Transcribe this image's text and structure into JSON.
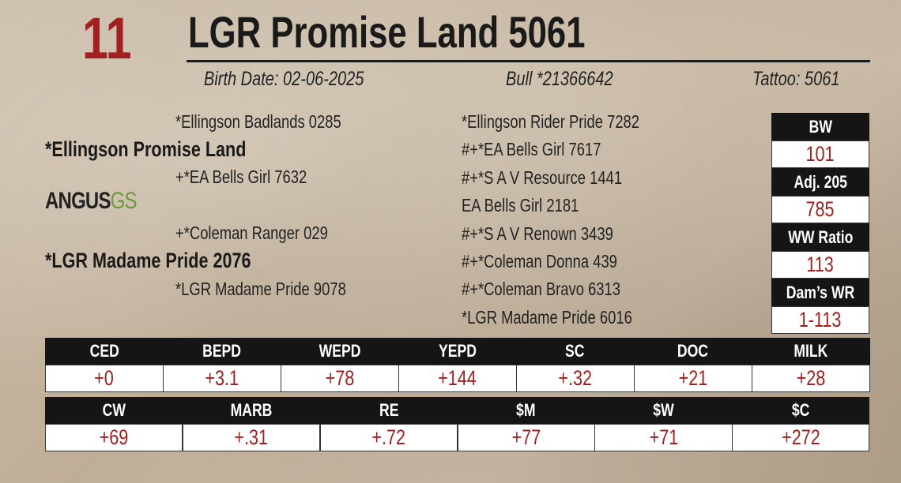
{
  "lot": "11",
  "name": "LGR Promise Land 5061",
  "birth_date": "Birth Date: 02-06-2025",
  "registration": "Bull *21366642",
  "tattoo": "Tattoo: 5061",
  "pedigree": {
    "sire_sire": "*Ellingson Badlands 0285",
    "sire": "*Ellingson Promise Land",
    "sire_dam": "+*EA Bells Girl 7632",
    "dam_sire": "+*Coleman Ranger 029",
    "dam": "*LGR Madame Pride 2076",
    "dam_dam": "*LGR Madame Pride 9078",
    "outer": [
      "*Ellingson Rider Pride 7282",
      "#+*EA Bells Girl 7617",
      "#+*S A V Resource 1441",
      "EA Bells Girl 2181",
      "#+*S A V Renown 3439",
      "#+*Coleman Donna 439",
      "#+*Coleman Bravo 6313",
      "*LGR Madame Pride 6016"
    ]
  },
  "logo": {
    "text": "ANGUS",
    "suffix": "GS"
  },
  "stats": [
    {
      "label": "BW",
      "value": "101"
    },
    {
      "label": "Adj. 205",
      "value": "785"
    },
    {
      "label": "WW Ratio",
      "value": "113"
    },
    {
      "label": "Dam’s WR",
      "value": "1-113"
    }
  ],
  "epd_rows": [
    [
      {
        "label": "CED",
        "value": "+0"
      },
      {
        "label": "BEPD",
        "value": "+3.1"
      },
      {
        "label": "WEPD",
        "value": "+78"
      },
      {
        "label": "YEPD",
        "value": "+144"
      },
      {
        "label": "SC",
        "value": "+.32"
      },
      {
        "label": "DOC",
        "value": "+21"
      },
      {
        "label": "MILK",
        "value": "+28"
      }
    ],
    [
      {
        "label": "CW",
        "value": "+69"
      },
      {
        "label": "MARB",
        "value": "+.31"
      },
      {
        "label": "RE",
        "value": "+.72"
      },
      {
        "label": "$M",
        "value": "+77"
      },
      {
        "label": "$W",
        "value": "+71"
      },
      {
        "label": "$C",
        "value": "+272"
      }
    ]
  ]
}
